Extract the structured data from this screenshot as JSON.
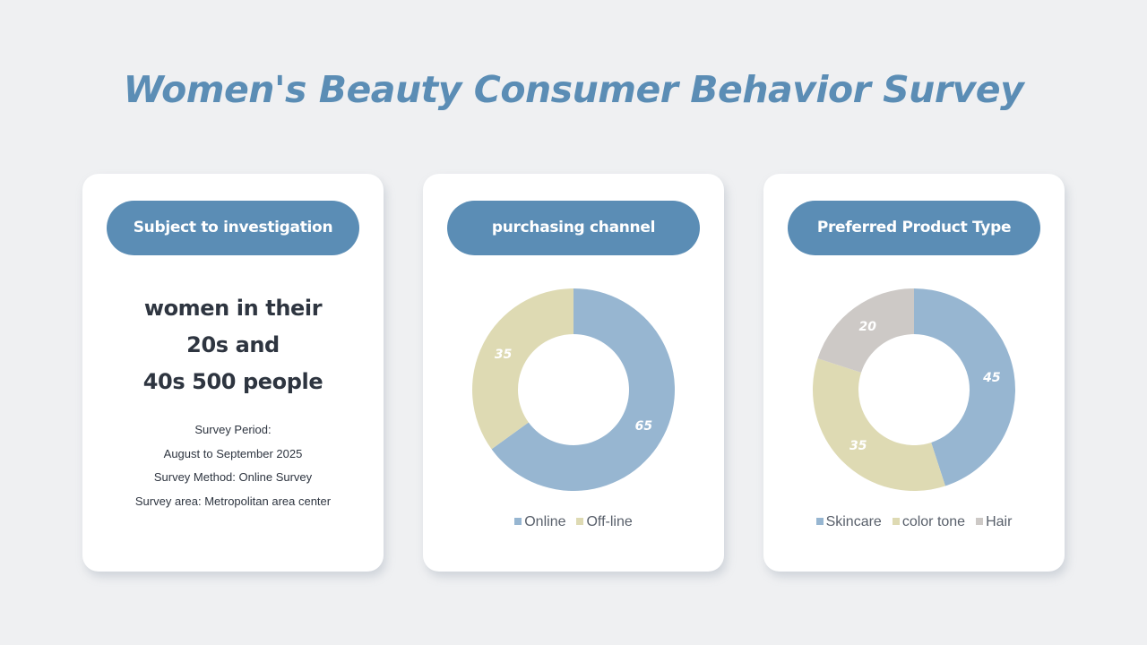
{
  "title": "Women's Beauty Consumer Behavior Survey",
  "card1": {
    "header": "Subject to investigation",
    "subject_lines": [
      "women in their",
      "20s and",
      "40s 500 people"
    ],
    "details": [
      "Survey Period:",
      "August to September 2025",
      "Survey Method: Online Survey",
      "Survey area: Metropolitan area center"
    ]
  },
  "card2": {
    "header": "purchasing channel"
  },
  "card3": {
    "header": "Preferred Product Type"
  },
  "chart_data": [
    {
      "type": "pie",
      "title": "purchasing channel",
      "donut": true,
      "categories": [
        "Online",
        "Off-line"
      ],
      "values": [
        65,
        35
      ],
      "colors": [
        "#97b6d1",
        "#dedab3"
      ],
      "legend": "bottom"
    },
    {
      "type": "pie",
      "title": "Preferred Product Type",
      "donut": true,
      "categories": [
        "Skincare",
        "color tone",
        "Hair"
      ],
      "values": [
        45,
        35,
        20
      ],
      "colors": [
        "#97b6d1",
        "#dedab3",
        "#cdc9c6"
      ],
      "legend": "bottom"
    }
  ]
}
